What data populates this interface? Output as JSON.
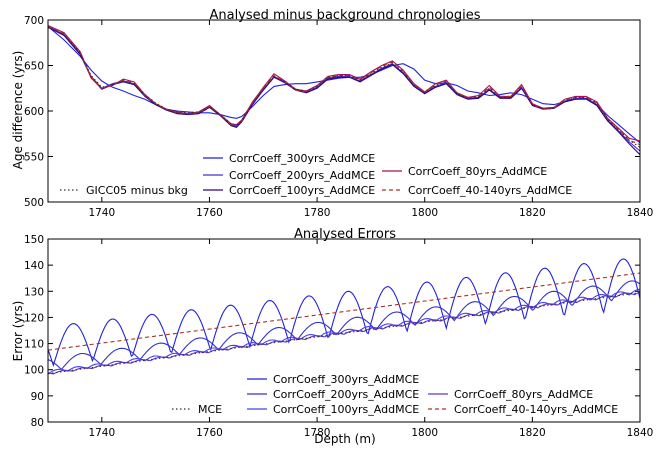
{
  "chart_data": [
    {
      "type": "line",
      "title": "Analysed minus background chronologies",
      "xlabel": "",
      "ylabel": "Age difference (yrs)",
      "xlim": [
        1730,
        1840
      ],
      "ylim": [
        500,
        700
      ],
      "xticks": [
        1740,
        1760,
        1780,
        1800,
        1820,
        1840
      ],
      "yticks": [
        500,
        550,
        600,
        650,
        700
      ],
      "legend_placement": "lower center",
      "legend": [
        {
          "name": "CorrCoeff_300yrs_AddMCE",
          "color": "#2222dd",
          "dash": "solid"
        },
        {
          "name": "CorrCoeff_80yrs_AddMCE",
          "color": "#aa1155",
          "dash": "solid"
        },
        {
          "name": "CorrCoeff_200yrs_AddMCE",
          "color": "#4433cc",
          "dash": "solid"
        },
        {
          "name": "GICC05 minus bkg",
          "color": "#333333",
          "dash": "dotted"
        },
        {
          "name": "CorrCoeff_100yrs_AddMCE",
          "color": "#330088",
          "dash": "solid"
        },
        {
          "name": "CorrCoeff_40-140yrs_AddMCE",
          "color": "#aa3322",
          "dash": "dashed"
        }
      ],
      "x": [
        1730,
        1733,
        1736,
        1738,
        1740,
        1742,
        1744,
        1746,
        1748,
        1750,
        1752,
        1754,
        1756,
        1758,
        1760,
        1762,
        1764,
        1765,
        1766,
        1768,
        1770,
        1772,
        1774,
        1776,
        1778,
        1780,
        1782,
        1784,
        1786,
        1788,
        1790,
        1792,
        1794,
        1796,
        1798,
        1800,
        1802,
        1804,
        1806,
        1808,
        1810,
        1812,
        1814,
        1816,
        1818,
        1820,
        1822,
        1824,
        1826,
        1828,
        1830,
        1832,
        1834,
        1836,
        1838,
        1840
      ],
      "series": [
        {
          "name": "CorrCoeff_300yrs_AddMCE",
          "values": [
            693,
            678,
            660,
            645,
            633,
            626,
            622,
            617,
            613,
            607,
            602,
            600,
            599,
            598,
            598,
            596,
            593,
            592,
            594,
            605,
            617,
            627,
            629,
            630,
            630,
            632,
            634,
            636,
            637,
            637,
            640,
            645,
            650,
            652,
            646,
            634,
            630,
            631,
            628,
            622,
            620,
            617,
            618,
            620,
            618,
            613,
            608,
            607,
            610,
            613,
            614,
            607,
            595,
            585,
            575,
            565
          ]
        },
        {
          "name": "CorrCoeff_80yrs_AddMCE",
          "values": [
            694,
            686,
            665,
            636,
            625,
            628,
            635,
            632,
            618,
            608,
            602,
            599,
            597,
            599,
            606,
            596,
            586,
            585,
            590,
            610,
            626,
            641,
            633,
            624,
            622,
            628,
            638,
            640,
            640,
            635,
            643,
            650,
            655,
            645,
            630,
            621,
            630,
            634,
            620,
            615,
            617,
            628,
            616,
            616,
            629,
            608,
            603,
            604,
            613,
            616,
            616,
            610,
            592,
            581,
            570,
            567
          ]
        },
        {
          "name": "CorrCoeff_200yrs_AddMCE",
          "values": [
            693,
            684,
            663,
            638,
            625,
            630,
            633,
            630,
            617,
            608,
            602,
            598,
            597,
            598,
            605,
            596,
            585,
            583,
            589,
            608,
            624,
            638,
            632,
            624,
            621,
            626,
            636,
            638,
            638,
            633,
            640,
            647,
            652,
            642,
            628,
            620,
            627,
            631,
            619,
            614,
            615,
            624,
            615,
            615,
            626,
            607,
            603,
            604,
            611,
            614,
            614,
            607,
            590,
            578,
            566,
            556
          ]
        },
        {
          "name": "GICC05 minus bkg",
          "values": [
            692,
            684,
            664,
            639,
            626,
            629,
            633,
            630,
            618,
            609,
            602,
            599,
            598,
            599,
            604,
            596,
            586,
            584,
            590,
            608,
            624,
            638,
            632,
            624,
            622,
            627,
            637,
            639,
            639,
            634,
            641,
            648,
            653,
            643,
            628,
            620,
            628,
            632,
            619,
            614,
            616,
            625,
            615,
            615,
            626,
            607,
            602,
            603,
            611,
            615,
            615,
            608,
            591,
            579,
            568,
            560
          ]
        },
        {
          "name": "CorrCoeff_100yrs_AddMCE",
          "values": [
            692,
            683,
            662,
            637,
            624,
            629,
            632,
            629,
            616,
            607,
            601,
            597,
            596,
            597,
            604,
            595,
            584,
            582,
            588,
            607,
            623,
            637,
            631,
            623,
            620,
            625,
            635,
            637,
            637,
            632,
            639,
            646,
            651,
            641,
            627,
            619,
            626,
            630,
            618,
            613,
            614,
            623,
            614,
            614,
            625,
            606,
            602,
            603,
            610,
            613,
            613,
            606,
            589,
            577,
            564,
            552
          ]
        },
        {
          "name": "CorrCoeff_40-140yrs_AddMCE",
          "values": [
            693,
            685,
            664,
            637,
            625,
            629,
            634,
            631,
            617,
            608,
            602,
            598,
            597,
            598,
            605,
            596,
            585,
            584,
            589,
            609,
            625,
            639,
            632,
            623,
            621,
            627,
            637,
            639,
            639,
            634,
            642,
            649,
            654,
            644,
            629,
            620,
            629,
            633,
            620,
            615,
            616,
            626,
            616,
            616,
            627,
            607,
            602,
            603,
            612,
            615,
            615,
            609,
            591,
            580,
            568,
            563
          ]
        }
      ]
    },
    {
      "type": "line",
      "title": "Analysed Errors",
      "xlabel": "Depth (m)",
      "ylabel": "Error (yrs)",
      "xlim": [
        1730,
        1840
      ],
      "ylim": [
        80,
        150
      ],
      "xticks": [
        1740,
        1760,
        1780,
        1800,
        1820,
        1840
      ],
      "yticks": [
        80,
        90,
        100,
        110,
        120,
        130,
        140,
        150
      ],
      "legend_placement": "lower center",
      "legend": [
        {
          "name": "CorrCoeff_300yrs_AddMCE",
          "color": "#2222dd",
          "dash": "solid"
        },
        {
          "name": "CorrCoeff_200yrs_AddMCE",
          "color": "#3333cc",
          "dash": "solid"
        },
        {
          "name": "CorrCoeff_80yrs_AddMCE",
          "color": "#6633cc",
          "dash": "solid"
        },
        {
          "name": "MCE",
          "color": "#333333",
          "dash": "dotted"
        },
        {
          "name": "CorrCoeff_100yrs_AddMCE",
          "color": "#4444ee",
          "dash": "solid"
        },
        {
          "name": "CorrCoeff_40-140yrs_AddMCE",
          "color": "#aa3322",
          "dash": "dashed"
        }
      ],
      "series": [
        {
          "name": "CorrCoeff_300yrs_AddMCE",
          "color": "#2222dd",
          "base_start": 109,
          "base_end": 133,
          "amplitude": 7.5,
          "period": 7.3,
          "phase": 1731
        },
        {
          "name": "CorrCoeff_200yrs_AddMCE",
          "color": "#3333cc",
          "base_start": 102,
          "base_end": 131,
          "amplitude": 2.5,
          "period": 7.3,
          "phase": 1732.5
        },
        {
          "name": "CorrCoeff_100yrs_AddMCE",
          "color": "#4444ee",
          "base_start": 99,
          "base_end": 130,
          "amplitude": 0.6,
          "period": 3.6,
          "phase": 1730
        },
        {
          "name": "CorrCoeff_80yrs_AddMCE",
          "color": "#6633cc",
          "base_start": 98.5,
          "base_end": 129.5,
          "amplitude": 0.4,
          "period": 3.6,
          "phase": 1731
        },
        {
          "name": "MCE",
          "color": "#333333",
          "base_start": 98.5,
          "base_end": 129.5,
          "amplitude": 0,
          "period": 10,
          "phase": 1730
        },
        {
          "name": "CorrCoeff_40-140yrs_AddMCE",
          "color": "#aa3322",
          "base_start": 107.5,
          "base_end": 137,
          "amplitude": 0,
          "period": 10,
          "phase": 1730
        }
      ]
    }
  ]
}
